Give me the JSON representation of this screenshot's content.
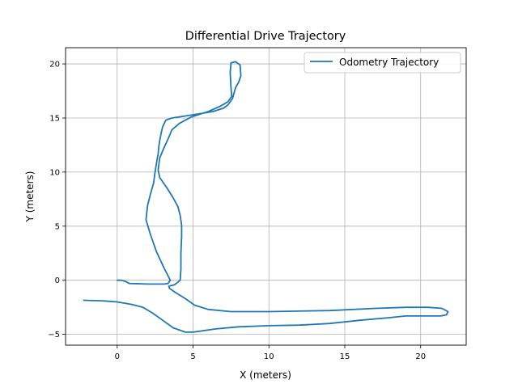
{
  "chart_data": {
    "type": "line",
    "title": "Differential Drive Trajectory",
    "xlabel": "X (meters)",
    "ylabel": "Y (meters)",
    "xlim": [
      -3.4,
      23.0
    ],
    "ylim": [
      -6.0,
      21.5
    ],
    "xticks": [
      0,
      5,
      10,
      15,
      20
    ],
    "yticks": [
      -5,
      0,
      5,
      10,
      15,
      20
    ],
    "grid": true,
    "legend_position": "top-right",
    "series": [
      {
        "name": "Odometry Trajectory",
        "color": "#1f77b4",
        "points": [
          [
            0.0,
            0.0
          ],
          [
            0.3,
            0.0
          ],
          [
            0.6,
            -0.15
          ],
          [
            0.8,
            -0.3
          ],
          [
            2.0,
            -0.35
          ],
          [
            3.1,
            -0.35
          ],
          [
            3.35,
            -0.3
          ],
          [
            3.5,
            0.0
          ],
          [
            3.1,
            1.1
          ],
          [
            2.6,
            2.6
          ],
          [
            2.2,
            4.2
          ],
          [
            1.9,
            5.6
          ],
          [
            2.0,
            6.9
          ],
          [
            2.2,
            8.0
          ],
          [
            2.4,
            9.0
          ],
          [
            2.5,
            10.0
          ],
          [
            2.6,
            10.9
          ],
          [
            2.7,
            11.7
          ],
          [
            2.75,
            12.4
          ],
          [
            2.8,
            12.9
          ],
          [
            2.9,
            13.6
          ],
          [
            3.0,
            14.2
          ],
          [
            3.2,
            14.8
          ],
          [
            3.6,
            15.0
          ],
          [
            5.0,
            15.3
          ],
          [
            6.3,
            15.6
          ],
          [
            7.0,
            15.9
          ],
          [
            7.3,
            16.2
          ],
          [
            7.6,
            16.8
          ],
          [
            7.8,
            17.8
          ],
          [
            8.0,
            18.3
          ],
          [
            8.15,
            18.9
          ],
          [
            8.1,
            19.9
          ],
          [
            7.8,
            20.2
          ],
          [
            7.5,
            20.1
          ],
          [
            7.45,
            19.2
          ],
          [
            7.5,
            17.8
          ],
          [
            7.55,
            17.0
          ],
          [
            7.3,
            16.5
          ],
          [
            6.8,
            16.1
          ],
          [
            6.0,
            15.6
          ],
          [
            4.9,
            15.1
          ],
          [
            4.1,
            14.5
          ],
          [
            3.6,
            13.9
          ],
          [
            3.4,
            13.2
          ],
          [
            3.1,
            12.3
          ],
          [
            2.8,
            11.3
          ],
          [
            2.7,
            10.2
          ],
          [
            2.8,
            9.5
          ],
          [
            3.3,
            8.5
          ],
          [
            3.7,
            7.6
          ],
          [
            4.0,
            6.8
          ],
          [
            4.15,
            6.0
          ],
          [
            4.25,
            5.1
          ],
          [
            4.25,
            4.0
          ],
          [
            4.2,
            2.5
          ],
          [
            4.2,
            1.0
          ],
          [
            4.15,
            0.0
          ],
          [
            3.8,
            -0.4
          ],
          [
            3.4,
            -0.55
          ],
          [
            3.45,
            -0.75
          ],
          [
            3.8,
            -1.1
          ],
          [
            4.5,
            -1.7
          ],
          [
            5.1,
            -2.3
          ],
          [
            6.0,
            -2.7
          ],
          [
            7.5,
            -2.9
          ],
          [
            10.0,
            -2.9
          ],
          [
            14.0,
            -2.8
          ],
          [
            17.0,
            -2.6
          ],
          [
            19.0,
            -2.5
          ],
          [
            20.5,
            -2.5
          ],
          [
            21.4,
            -2.6
          ],
          [
            21.8,
            -2.9
          ],
          [
            21.7,
            -3.2
          ],
          [
            21.3,
            -3.3
          ],
          [
            20.5,
            -3.3
          ],
          [
            19.0,
            -3.3
          ],
          [
            18.0,
            -3.45
          ],
          [
            16.0,
            -3.7
          ],
          [
            14.0,
            -4.0
          ],
          [
            12.0,
            -4.15
          ],
          [
            10.0,
            -4.2
          ],
          [
            8.0,
            -4.3
          ],
          [
            6.5,
            -4.5
          ],
          [
            5.0,
            -4.8
          ],
          [
            4.5,
            -4.8
          ],
          [
            3.7,
            -4.4
          ],
          [
            3.0,
            -3.7
          ],
          [
            2.3,
            -3.0
          ],
          [
            1.7,
            -2.5
          ],
          [
            1.0,
            -2.25
          ],
          [
            0.0,
            -2.0
          ],
          [
            -1.0,
            -1.9
          ],
          [
            -2.2,
            -1.85
          ]
        ]
      }
    ]
  }
}
